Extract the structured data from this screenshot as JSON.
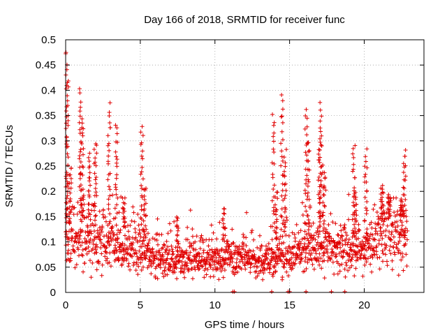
{
  "chart_data": {
    "type": "scatter",
    "title": "Day 166 of 2018, SRMTID for receiver func",
    "xlabel": "GPS time / hours",
    "ylabel": "SRMTID / TECUs",
    "xlim": [
      0,
      24
    ],
    "ylim": [
      0,
      0.5
    ],
    "x_ticks": [
      0,
      5,
      10,
      15,
      20
    ],
    "y_ticks": [
      0,
      0.05,
      0.1,
      0.15,
      0.2,
      0.25,
      0.3,
      0.35,
      0.4,
      0.45,
      0.5
    ],
    "grid": true,
    "marker": "+",
    "color": "#e00000",
    "series": [
      {
        "name": "SRMTID",
        "baseline_profile": [
          [
            0.0,
            0.1
          ],
          [
            1.0,
            0.11
          ],
          [
            2.0,
            0.11
          ],
          [
            3.0,
            0.1
          ],
          [
            4.0,
            0.09
          ],
          [
            5.0,
            0.085
          ],
          [
            6.0,
            0.07
          ],
          [
            7.0,
            0.06
          ],
          [
            8.0,
            0.065
          ],
          [
            9.0,
            0.07
          ],
          [
            10.0,
            0.065
          ],
          [
            11.0,
            0.07
          ],
          [
            12.0,
            0.065
          ],
          [
            13.0,
            0.06
          ],
          [
            14.0,
            0.065
          ],
          [
            15.0,
            0.07
          ],
          [
            16.0,
            0.08
          ],
          [
            17.0,
            0.09
          ],
          [
            18.0,
            0.09
          ],
          [
            19.0,
            0.08
          ],
          [
            20.0,
            0.08
          ],
          [
            21.0,
            0.11
          ],
          [
            22.0,
            0.13
          ],
          [
            23.0,
            0.1
          ]
        ],
        "peaks": [
          [
            0.05,
            0.48
          ],
          [
            0.1,
            0.42
          ],
          [
            0.3,
            0.25
          ],
          [
            1.0,
            0.4
          ],
          [
            1.1,
            0.34
          ],
          [
            1.6,
            0.27
          ],
          [
            2.0,
            0.3
          ],
          [
            2.9,
            0.37
          ],
          [
            3.4,
            0.33
          ],
          [
            3.9,
            0.19
          ],
          [
            5.1,
            0.33
          ],
          [
            5.3,
            0.21
          ],
          [
            7.5,
            0.15
          ],
          [
            10.6,
            0.17
          ],
          [
            13.9,
            0.35
          ],
          [
            14.1,
            0.2
          ],
          [
            14.5,
            0.39
          ],
          [
            14.7,
            0.28
          ],
          [
            16.1,
            0.36
          ],
          [
            16.3,
            0.3
          ],
          [
            17.0,
            0.3
          ],
          [
            17.1,
            0.37
          ],
          [
            17.3,
            0.25
          ],
          [
            19.3,
            0.29
          ],
          [
            19.4,
            0.2
          ],
          [
            20.1,
            0.28
          ],
          [
            21.2,
            0.21
          ],
          [
            21.7,
            0.19
          ],
          [
            22.5,
            0.18
          ],
          [
            22.7,
            0.28
          ]
        ],
        "zero_points": [
          11.2,
          11.3,
          13.8,
          14.9,
          15.0,
          16.1,
          17.8,
          18.7
        ]
      }
    ]
  }
}
